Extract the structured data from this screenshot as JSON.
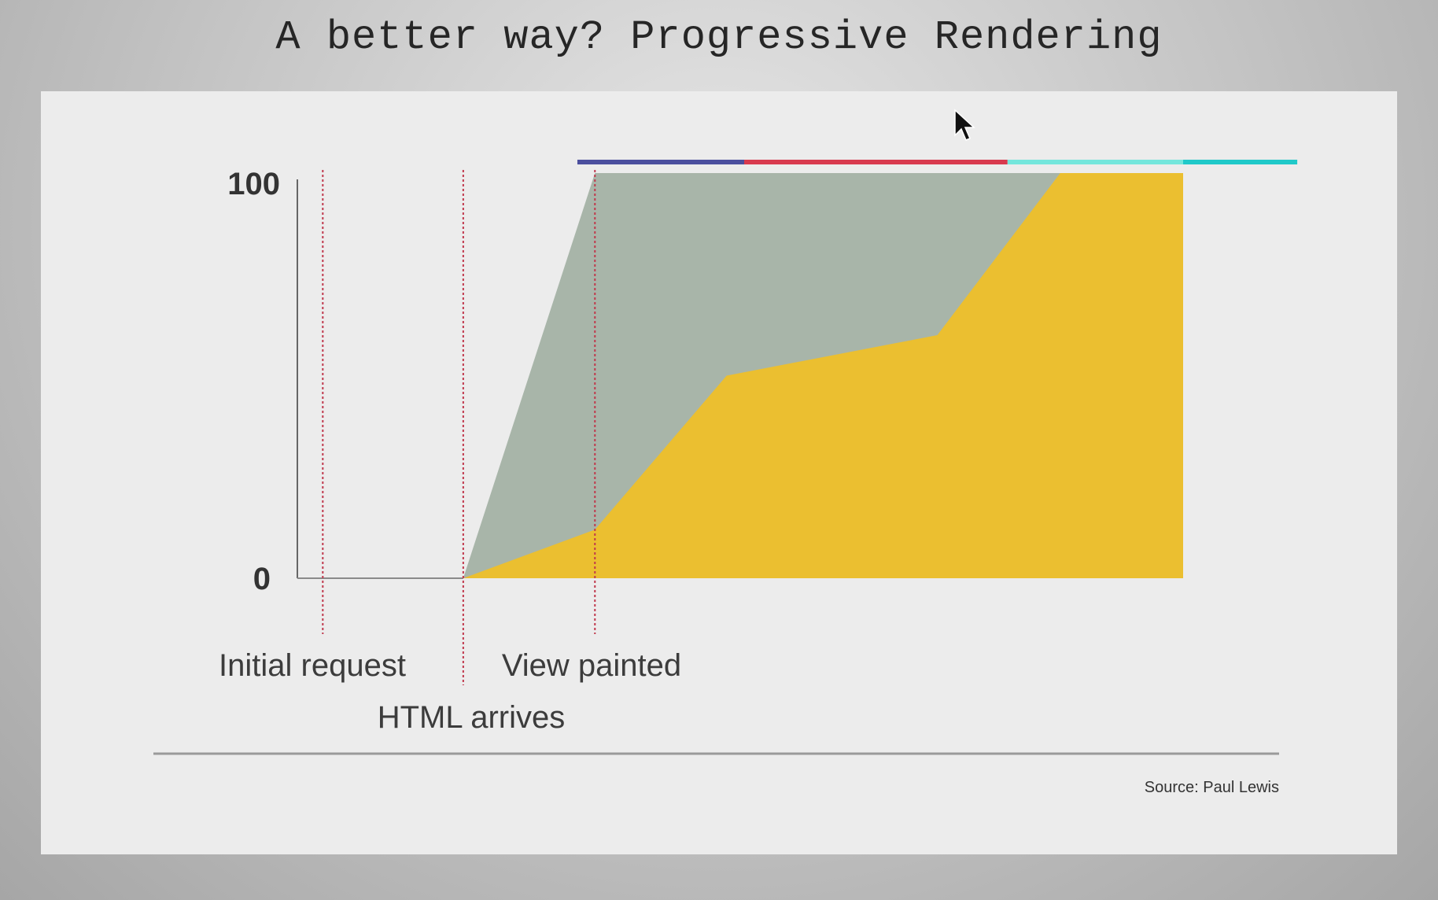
{
  "slide": {
    "title": "A better way? Progressive Rendering"
  },
  "chart_data": {
    "type": "area",
    "title": "",
    "xlabel": "",
    "ylabel": "",
    "ylim": [
      0,
      100
    ],
    "xlim": [
      0,
      100
    ],
    "y_ticks": [
      "0",
      "100"
    ],
    "grid": false,
    "legend": "none",
    "series": [
      {
        "color": "#a8b5a9",
        "points": [
          [
            0,
            0
          ],
          [
            18,
            0
          ],
          [
            33,
            100
          ],
          [
            100,
            100
          ]
        ]
      },
      {
        "color": "#ebbf30",
        "points": [
          [
            0,
            0
          ],
          [
            18,
            0
          ],
          [
            33,
            12
          ],
          [
            48,
            50
          ],
          [
            72,
            60
          ],
          [
            86,
            100
          ],
          [
            100,
            100
          ]
        ]
      }
    ],
    "markers": [
      {
        "x": 2,
        "label": "Initial request"
      },
      {
        "x": 18,
        "label": "HTML arrives"
      },
      {
        "x": 33,
        "label": "View painted"
      }
    ],
    "timeline_bar": [
      {
        "from": 31,
        "to": 50,
        "color": "#4b4f9e"
      },
      {
        "from": 50,
        "to": 80,
        "color": "#d83a4e"
      },
      {
        "from": 80,
        "to": 100,
        "color": "#74e6dc"
      },
      {
        "from": 100,
        "to": 113,
        "color": "#20c9c9"
      }
    ],
    "source": "Source: Paul Lewis"
  }
}
